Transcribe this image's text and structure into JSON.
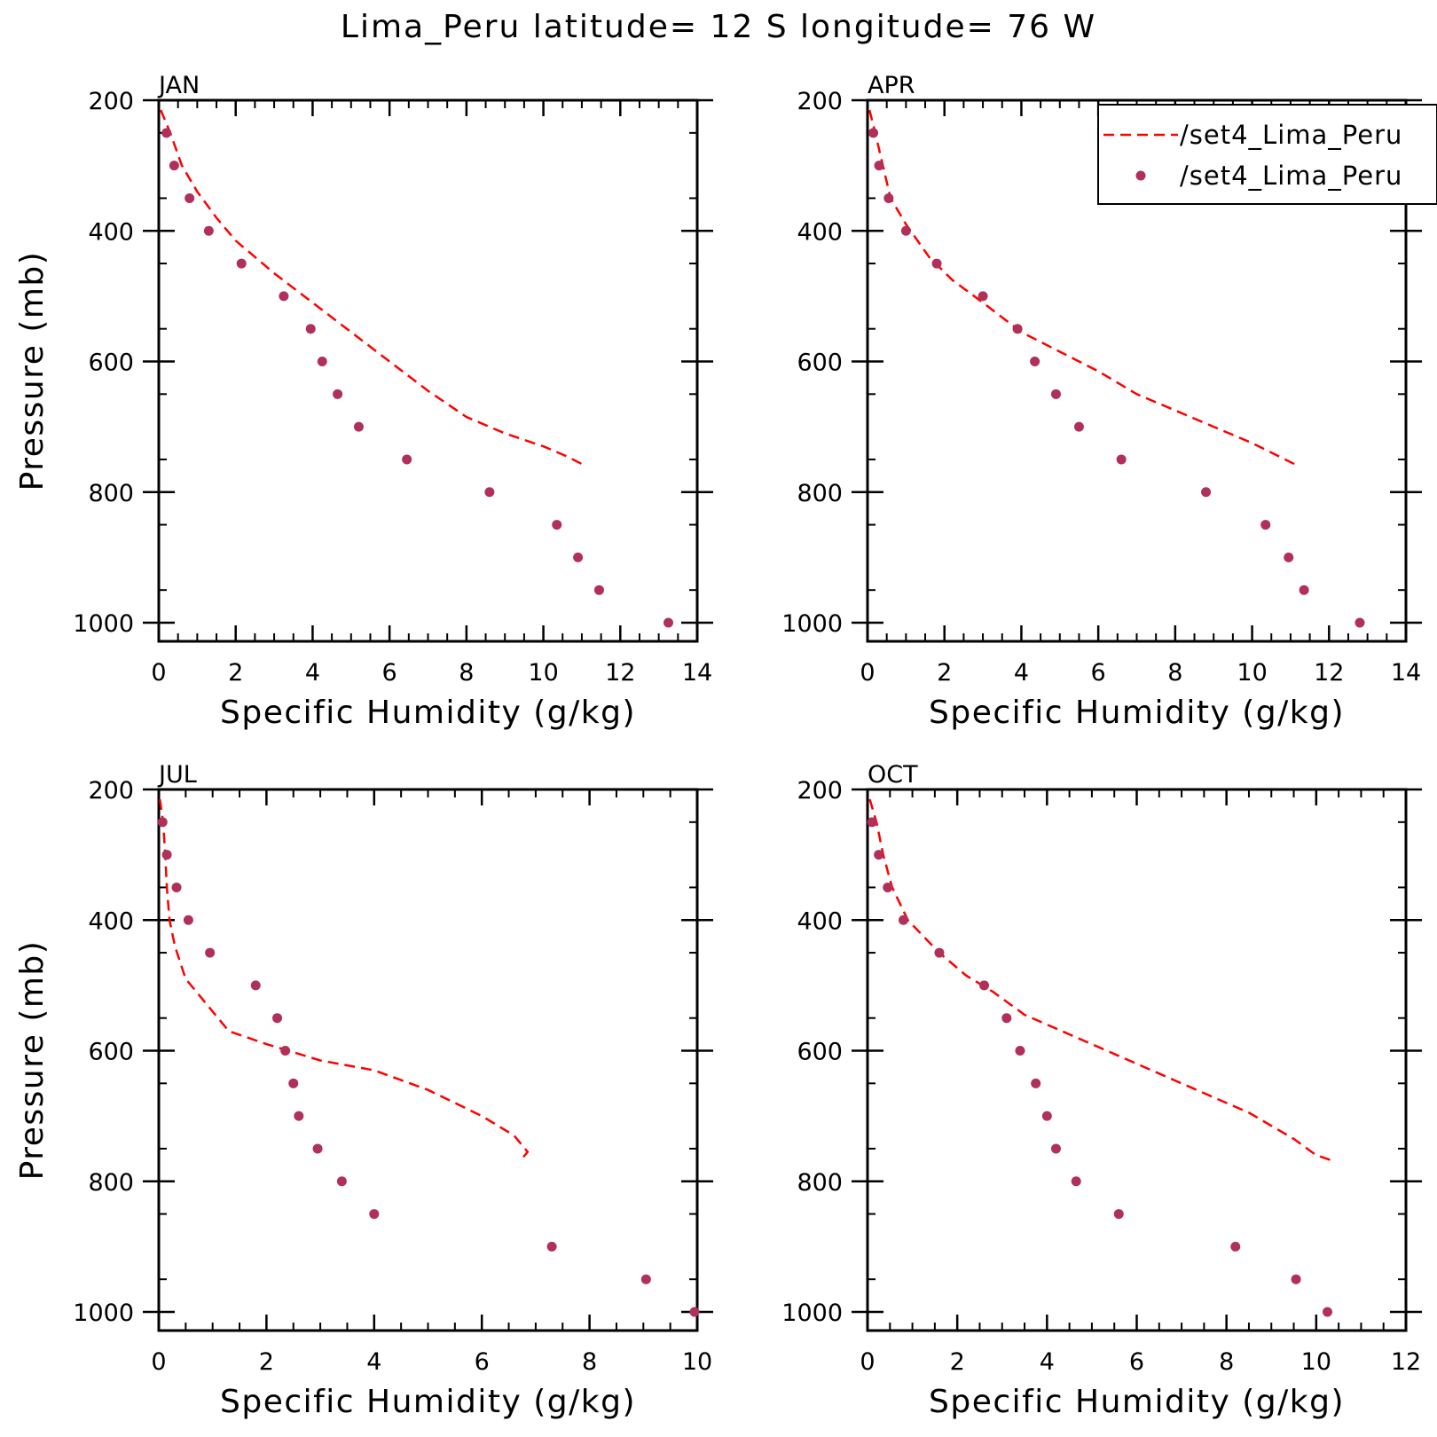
{
  "figure": {
    "title": "Lima_Peru  latitude= 12 S longitude= 76 W"
  },
  "colors": {
    "model_line": "#ff0000",
    "obs_marker": "#b0305a",
    "axis": "#000000",
    "background": "#ffffff"
  },
  "legend": {
    "placement": "top-right of APR panel",
    "entries": [
      {
        "label": "/set4_Lima_Peru",
        "style": "dashed-line",
        "color": "#ff0000"
      },
      {
        "label": "/set4_Lima_Peru",
        "style": "marker",
        "color": "#b0305a"
      }
    ]
  },
  "chart_data": [
    {
      "type": "line",
      "panel": "JAN",
      "xlabel": "Specific Humidity (g/kg)",
      "ylabel": "Pressure (mb)",
      "xlim": [
        0,
        14
      ],
      "ylim": [
        200,
        1025
      ],
      "y_inverted": true,
      "xticks": [
        0,
        2,
        4,
        6,
        8,
        10,
        12,
        14
      ],
      "yticks": [
        200,
        400,
        600,
        800,
        1000
      ],
      "series": [
        {
          "style": "dashed-line",
          "x": [
            0.05,
            0.3,
            0.6,
            1.0,
            1.5,
            2.0,
            3.0,
            4.0,
            5.0,
            6.0,
            7.0,
            8.0,
            9.0,
            10.0,
            10.6,
            11.1
          ],
          "y": [
            215,
            250,
            300,
            340,
            380,
            415,
            465,
            510,
            555,
            600,
            645,
            685,
            710,
            730,
            745,
            760
          ]
        },
        {
          "style": "marker",
          "x": [
            0.2,
            0.4,
            0.8,
            1.3,
            2.15,
            3.25,
            3.95,
            4.25,
            4.65,
            5.2,
            6.45,
            8.6,
            10.35,
            10.9,
            11.45,
            13.25
          ],
          "y": [
            250,
            300,
            350,
            400,
            450,
            500,
            550,
            600,
            650,
            700,
            750,
            800,
            850,
            900,
            950,
            1000
          ]
        }
      ]
    },
    {
      "type": "line",
      "panel": "APR",
      "xlabel": "Specific Humidity (g/kg)",
      "ylabel": "Pressure (mb)",
      "xlim": [
        0,
        14
      ],
      "ylim": [
        200,
        1025
      ],
      "y_inverted": true,
      "xticks": [
        0,
        2,
        4,
        6,
        8,
        10,
        12,
        14
      ],
      "yticks": [
        200,
        400,
        600,
        800,
        1000
      ],
      "series": [
        {
          "style": "dashed-line",
          "x": [
            0.05,
            0.2,
            0.4,
            0.6,
            1.0,
            1.6,
            2.2,
            3.0,
            4.0,
            5.0,
            6.0,
            7.0,
            8.0,
            9.0,
            10.0,
            11.2
          ],
          "y": [
            215,
            250,
            300,
            350,
            390,
            440,
            475,
            510,
            555,
            585,
            615,
            650,
            675,
            700,
            725,
            760
          ]
        },
        {
          "style": "marker",
          "x": [
            0.15,
            0.3,
            0.55,
            1.0,
            1.8,
            3.0,
            3.9,
            4.35,
            4.9,
            5.5,
            6.6,
            8.8,
            10.35,
            10.95,
            11.35,
            12.8
          ],
          "y": [
            250,
            300,
            350,
            400,
            450,
            500,
            550,
            600,
            650,
            700,
            750,
            800,
            850,
            900,
            950,
            1000
          ]
        }
      ]
    },
    {
      "type": "line",
      "panel": "JUL",
      "xlabel": "Specific Humidity (g/kg)",
      "ylabel": "Pressure (mb)",
      "xlim": [
        0,
        10
      ],
      "ylim": [
        200,
        1025
      ],
      "y_inverted": true,
      "xticks": [
        0,
        2,
        4,
        6,
        8,
        10
      ],
      "yticks": [
        200,
        400,
        600,
        800,
        1000
      ],
      "series": [
        {
          "style": "dashed-line",
          "x": [
            0.02,
            0.08,
            0.12,
            0.15,
            0.2,
            0.3,
            0.5,
            0.8,
            1.3,
            2.0,
            3.0,
            4.0,
            5.0,
            6.0,
            6.6,
            6.85,
            6.7
          ],
          "y": [
            215,
            250,
            300,
            350,
            400,
            440,
            490,
            520,
            570,
            590,
            615,
            630,
            660,
            700,
            730,
            755,
            770
          ]
        },
        {
          "style": "marker",
          "x": [
            0.07,
            0.15,
            0.33,
            0.55,
            0.95,
            1.8,
            2.2,
            2.35,
            2.5,
            2.6,
            2.95,
            3.4,
            4.0,
            7.3,
            9.05,
            9.95
          ],
          "y": [
            250,
            300,
            350,
            400,
            450,
            500,
            550,
            600,
            650,
            700,
            750,
            800,
            850,
            900,
            950,
            1000
          ]
        }
      ]
    },
    {
      "type": "line",
      "panel": "OCT",
      "xlabel": "Specific Humidity (g/kg)",
      "ylabel": "Pressure (mb)",
      "xlim": [
        0,
        12
      ],
      "ylim": [
        200,
        1025
      ],
      "y_inverted": true,
      "xticks": [
        0,
        2,
        4,
        6,
        8,
        10,
        12
      ],
      "yticks": [
        200,
        400,
        600,
        800,
        1000
      ],
      "series": [
        {
          "style": "dashed-line",
          "x": [
            0.05,
            0.2,
            0.35,
            0.55,
            0.9,
            1.6,
            2.2,
            2.8,
            3.5,
            4.5,
            5.5,
            6.5,
            7.5,
            8.5,
            9.5,
            10.0,
            10.35
          ],
          "y": [
            215,
            250,
            300,
            350,
            400,
            450,
            485,
            510,
            545,
            575,
            605,
            635,
            665,
            695,
            735,
            760,
            768
          ]
        },
        {
          "style": "marker",
          "x": [
            0.1,
            0.25,
            0.45,
            0.8,
            1.6,
            2.6,
            3.1,
            3.4,
            3.75,
            4.0,
            4.2,
            4.65,
            5.6,
            8.2,
            9.55,
            10.25
          ],
          "y": [
            250,
            300,
            350,
            400,
            450,
            500,
            550,
            600,
            650,
            700,
            750,
            800,
            850,
            900,
            950,
            1000
          ]
        }
      ]
    }
  ]
}
